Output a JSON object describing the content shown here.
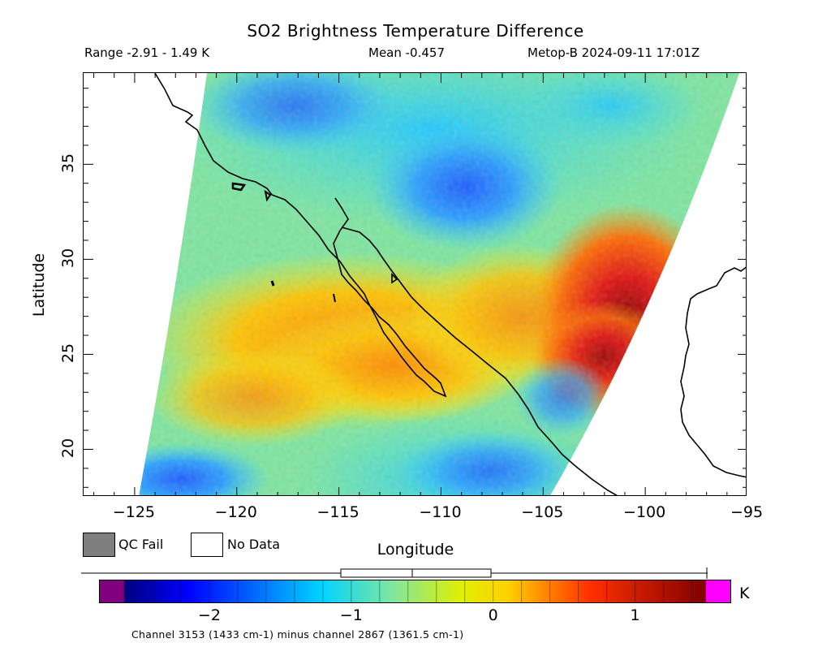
{
  "header": {
    "title": "SO2 Brightness Temperature Difference",
    "range": "Range -2.91 - 1.49 K",
    "mean": "Mean -0.457",
    "source": "Metop-B 2024-09-11 17:01Z"
  },
  "map": {
    "xlabel": "Longitude",
    "ylabel": "Latitude",
    "lon_range": [
      -127.5,
      -95
    ],
    "lat_range": [
      17.5,
      39.8
    ],
    "x_ticks": [
      "-125",
      "-120",
      "-115",
      "-110",
      "-105",
      "-100",
      "-95"
    ],
    "y_ticks": [
      "20",
      "25",
      "30",
      "35"
    ],
    "value_range_K": [
      -2.91,
      1.49
    ],
    "mean_K": -0.457,
    "features": [
      "California coastline",
      "Baja California peninsula",
      "Gulf of California",
      "Mexico coastline",
      "Gulf of Mexico coastline"
    ],
    "high_region": "elevated positive difference (up to ~1.4 K) along the east side of the swath near 25-31N, 100-104W",
    "low_region": "negative difference (~ -1.5 K) over northern and southern swath edges"
  },
  "legend": {
    "qc_fail_label": "QC Fail",
    "qc_fail_color": "#7f7f7f",
    "no_data_label": "No Data",
    "no_data_color": "#ffffff"
  },
  "colorbar": {
    "unit": "K",
    "min": -2.6,
    "max": 1.5,
    "ticks": [
      "-2",
      "-1",
      "0",
      "1"
    ],
    "under_color": "#800080",
    "over_color": "#ff00ff",
    "colormap": "jet",
    "range_indicator": {
      "min": -2.91,
      "max": 1.49,
      "mean": -0.457
    },
    "footnote": "Channel 3153 (1433 cm-1) minus channel 2867 (1361.5 cm-1)"
  }
}
